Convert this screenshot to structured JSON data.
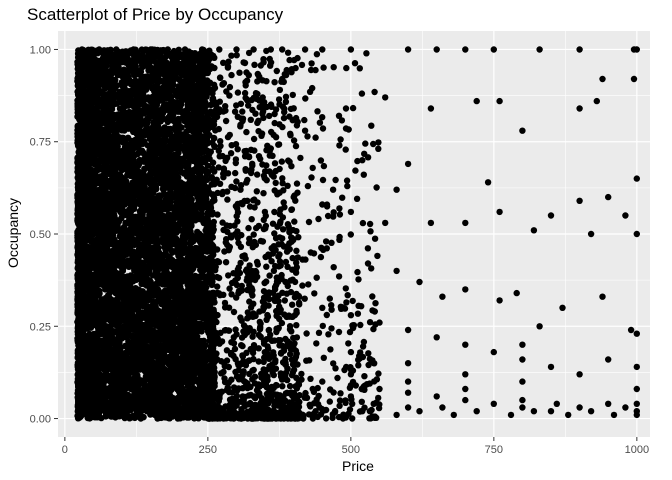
{
  "chart_data": {
    "type": "scatter",
    "title": "Scatterplot of Price by Occupancy",
    "xlabel": "Price",
    "ylabel": "Occupancy",
    "xlim": [
      -12,
      1023
    ],
    "ylim": [
      -0.05,
      1.05
    ],
    "x_ticks": [
      0,
      250,
      500,
      750,
      1000
    ],
    "x_tick_labels": [
      "0",
      "250",
      "500",
      "750",
      "1000"
    ],
    "y_ticks": [
      0,
      0.25,
      0.5,
      0.75,
      1
    ],
    "y_tick_labels": [
      "0.00",
      "0.25",
      "0.50",
      "0.75",
      "1.00"
    ],
    "x_minor": [
      125,
      375,
      625,
      875
    ],
    "y_minor": [
      0.125,
      0.375,
      0.625,
      0.875
    ],
    "grid": true,
    "legend": "none",
    "colors": {
      "panel": "#ebebeb",
      "grid": "#ffffff",
      "point": "#000000"
    },
    "series": [
      {
        "points": [
          [
            30,
            1
          ],
          [
            60,
            1
          ],
          [
            90,
            1
          ],
          [
            120,
            1
          ],
          [
            150,
            1
          ],
          [
            180,
            1
          ],
          [
            210,
            1
          ],
          [
            240,
            1
          ],
          [
            270,
            1
          ],
          [
            300,
            1
          ],
          [
            330,
            1
          ],
          [
            360,
            1
          ],
          [
            380,
            1
          ],
          [
            420,
            1
          ],
          [
            450,
            1
          ],
          [
            500,
            1
          ],
          [
            600,
            1
          ],
          [
            650,
            1
          ],
          [
            700,
            1
          ],
          [
            750,
            1
          ],
          [
            830,
            1
          ],
          [
            900,
            1
          ],
          [
            995,
            1
          ],
          [
            1000,
            1
          ],
          [
            380,
            0.92
          ],
          [
            560,
            0.87
          ],
          [
            640,
            0.84
          ],
          [
            720,
            0.86
          ],
          [
            760,
            0.86
          ],
          [
            900,
            0.84
          ],
          [
            940,
            0.92
          ],
          [
            995,
            0.92
          ],
          [
            930,
            0.86
          ],
          [
            420,
            0.78
          ],
          [
            480,
            0.74
          ],
          [
            520,
            0.7
          ],
          [
            580,
            0.62
          ],
          [
            600,
            0.69
          ],
          [
            800,
            0.78
          ],
          [
            850,
            0.55
          ],
          [
            900,
            0.59
          ],
          [
            950,
            0.6
          ],
          [
            980,
            0.55
          ],
          [
            400,
            0.6
          ],
          [
            450,
            0.58
          ],
          [
            500,
            0.56
          ],
          [
            560,
            0.53
          ],
          [
            640,
            0.53
          ],
          [
            700,
            0.53
          ],
          [
            740,
            0.64
          ],
          [
            760,
            0.56
          ],
          [
            820,
            0.51
          ],
          [
            920,
            0.5
          ],
          [
            1000,
            0.5
          ],
          [
            1000,
            0.65
          ],
          [
            430,
            0.45
          ],
          [
            470,
            0.41
          ],
          [
            530,
            0.42
          ],
          [
            580,
            0.4
          ],
          [
            620,
            0.37
          ],
          [
            660,
            0.33
          ],
          [
            700,
            0.35
          ],
          [
            760,
            0.32
          ],
          [
            790,
            0.34
          ],
          [
            830,
            0.25
          ],
          [
            870,
            0.3
          ],
          [
            940,
            0.33
          ],
          [
            990,
            0.24
          ],
          [
            1000,
            0.23
          ],
          [
            450,
            0.3
          ],
          [
            500,
            0.28
          ],
          [
            550,
            0.26
          ],
          [
            600,
            0.24
          ],
          [
            650,
            0.22
          ],
          [
            700,
            0.2
          ],
          [
            750,
            0.18
          ],
          [
            800,
            0.16
          ],
          [
            850,
            0.14
          ],
          [
            900,
            0.12
          ],
          [
            950,
            0.16
          ],
          [
            1000,
            0.14
          ],
          [
            450,
            0.1
          ],
          [
            500,
            0.09
          ],
          [
            550,
            0.08
          ],
          [
            600,
            0.07
          ],
          [
            650,
            0.06
          ],
          [
            700,
            0.05
          ],
          [
            750,
            0.04
          ],
          [
            800,
            0.03
          ],
          [
            850,
            0.02
          ],
          [
            900,
            0.03
          ],
          [
            950,
            0.04
          ],
          [
            1000,
            0.02
          ],
          [
            500,
            0.18
          ],
          [
            500,
            0.12
          ],
          [
            500,
            0.06
          ],
          [
            600,
            0.15
          ],
          [
            600,
            0.1
          ],
          [
            600,
            0.03
          ],
          [
            700,
            0.12
          ],
          [
            700,
            0.08
          ],
          [
            800,
            0.2
          ],
          [
            800,
            0.1
          ],
          [
            800,
            0.05
          ],
          [
            1000,
            0.08
          ],
          [
            1000,
            0.04
          ],
          [
            1000,
            0.01
          ],
          [
            520,
            0.02
          ],
          [
            540,
            0.04
          ],
          [
            580,
            0.01
          ],
          [
            620,
            0.02
          ],
          [
            660,
            0.03
          ],
          [
            680,
            0.01
          ],
          [
            720,
            0.02
          ],
          [
            780,
            0.01
          ],
          [
            820,
            0.02
          ],
          [
            860,
            0.04
          ],
          [
            880,
            0.01
          ],
          [
            920,
            0.02
          ],
          [
            960,
            0.01
          ],
          [
            980,
            0.03
          ]
        ]
      }
    ]
  }
}
